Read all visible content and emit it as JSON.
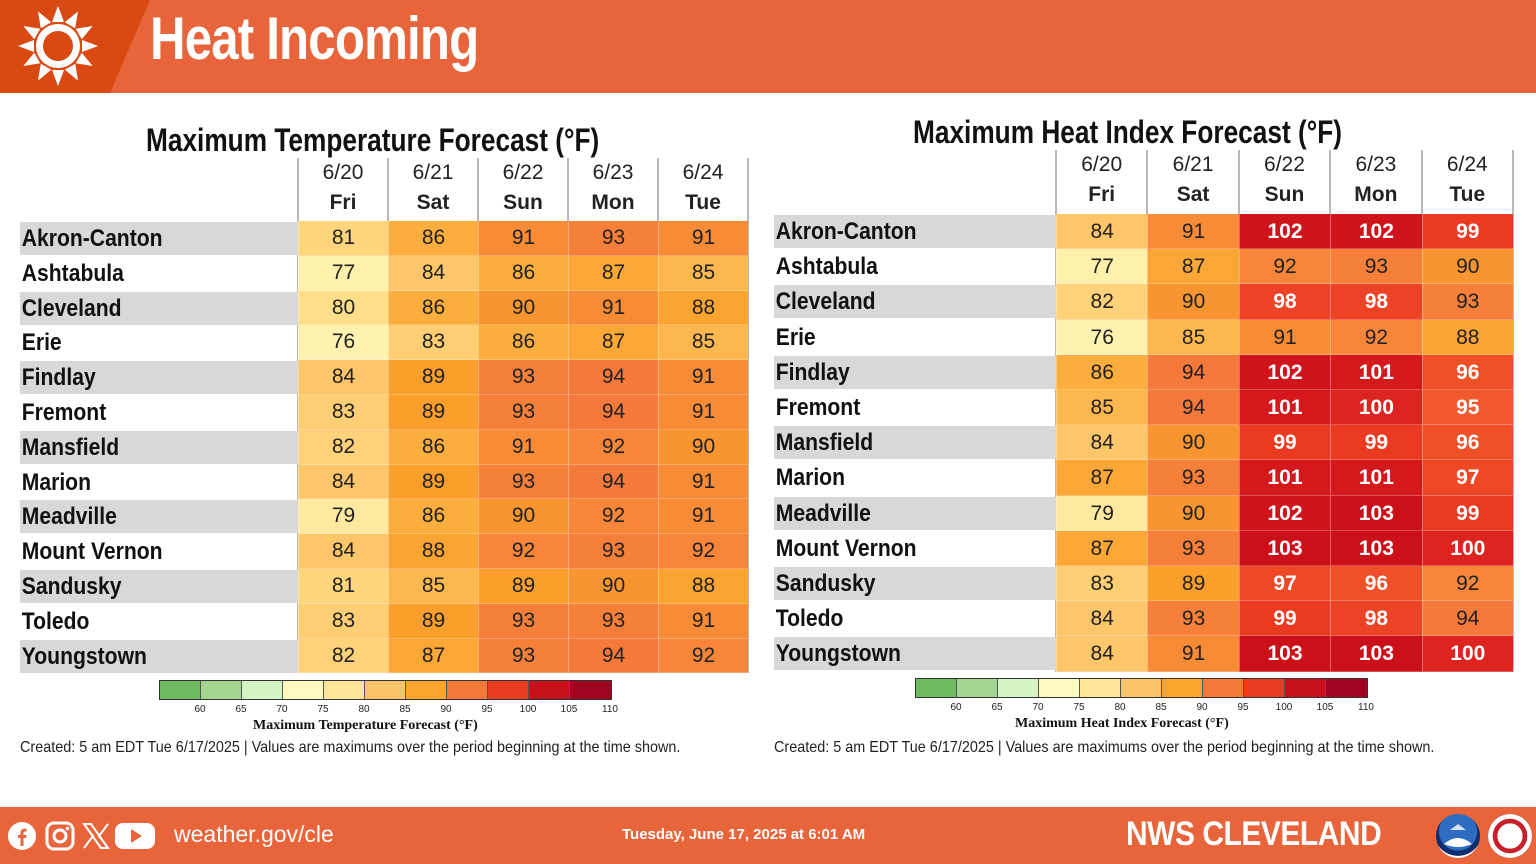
{
  "header": {
    "title": "Heat Incoming",
    "icon": "sun-icon"
  },
  "temp_panel": {
    "title": "Maximum Temperature Forecast (°F)",
    "legend_label": "Maximum Temperature Forecast (°F)",
    "days": [
      {
        "date": "6/20",
        "name": "Fri"
      },
      {
        "date": "6/21",
        "name": "Sat"
      },
      {
        "date": "6/22",
        "name": "Sun"
      },
      {
        "date": "6/23",
        "name": "Mon"
      },
      {
        "date": "6/24",
        "name": "Tue"
      }
    ],
    "rows": [
      {
        "city": "Akron-Canton",
        "values": [
          81,
          86,
          91,
          93,
          91
        ]
      },
      {
        "city": "Ashtabula",
        "values": [
          77,
          84,
          86,
          87,
          85
        ]
      },
      {
        "city": "Cleveland",
        "values": [
          80,
          86,
          90,
          91,
          88
        ]
      },
      {
        "city": "Erie",
        "values": [
          76,
          83,
          86,
          87,
          85
        ]
      },
      {
        "city": "Findlay",
        "values": [
          84,
          89,
          93,
          94,
          91
        ]
      },
      {
        "city": "Fremont",
        "values": [
          83,
          89,
          93,
          94,
          91
        ]
      },
      {
        "city": "Mansfield",
        "values": [
          82,
          86,
          91,
          92,
          90
        ]
      },
      {
        "city": "Marion",
        "values": [
          84,
          89,
          93,
          94,
          91
        ]
      },
      {
        "city": "Meadville",
        "values": [
          79,
          86,
          90,
          92,
          91
        ]
      },
      {
        "city": "Mount Vernon",
        "values": [
          84,
          88,
          92,
          93,
          92
        ]
      },
      {
        "city": "Sandusky",
        "values": [
          81,
          85,
          89,
          90,
          88
        ]
      },
      {
        "city": "Toledo",
        "values": [
          83,
          89,
          93,
          93,
          91
        ]
      },
      {
        "city": "Youngstown",
        "values": [
          82,
          87,
          93,
          94,
          92
        ]
      }
    ],
    "created": "Created: 5 am EDT Tue 6/17/2025  |  Values are maximums over the period beginning at the time shown."
  },
  "heat_panel": {
    "title": "Maximum Heat Index Forecast (°F)",
    "legend_label": "Maximum Heat Index Forecast (°F)",
    "days": [
      {
        "date": "6/20",
        "name": "Fri"
      },
      {
        "date": "6/21",
        "name": "Sat"
      },
      {
        "date": "6/22",
        "name": "Sun"
      },
      {
        "date": "6/23",
        "name": "Mon"
      },
      {
        "date": "6/24",
        "name": "Tue"
      }
    ],
    "rows": [
      {
        "city": "Akron-Canton",
        "values": [
          84,
          91,
          102,
          102,
          99
        ]
      },
      {
        "city": "Ashtabula",
        "values": [
          77,
          87,
          92,
          93,
          90
        ]
      },
      {
        "city": "Cleveland",
        "values": [
          82,
          90,
          98,
          98,
          93
        ]
      },
      {
        "city": "Erie",
        "values": [
          76,
          85,
          91,
          92,
          88
        ]
      },
      {
        "city": "Findlay",
        "values": [
          86,
          94,
          102,
          101,
          96
        ]
      },
      {
        "city": "Fremont",
        "values": [
          85,
          94,
          101,
          100,
          95
        ]
      },
      {
        "city": "Mansfield",
        "values": [
          84,
          90,
          99,
          99,
          96
        ]
      },
      {
        "city": "Marion",
        "values": [
          87,
          93,
          101,
          101,
          97
        ]
      },
      {
        "city": "Meadville",
        "values": [
          79,
          90,
          102,
          103,
          99
        ]
      },
      {
        "city": "Mount Vernon",
        "values": [
          87,
          93,
          103,
          103,
          100
        ]
      },
      {
        "city": "Sandusky",
        "values": [
          83,
          89,
          97,
          96,
          92
        ]
      },
      {
        "city": "Toledo",
        "values": [
          84,
          93,
          99,
          98,
          94
        ]
      },
      {
        "city": "Youngstown",
        "values": [
          84,
          91,
          103,
          103,
          100
        ]
      }
    ],
    "created": "Created: 5 am EDT Tue 6/17/2025  |  Values are maximums over the period beginning at the time shown."
  },
  "legend": {
    "ticks": [
      "60",
      "65",
      "70",
      "75",
      "80",
      "85",
      "90",
      "95",
      "100",
      "105",
      "110"
    ],
    "colors": [
      "#6dbb5e",
      "#a3d68e",
      "#d6f5c4",
      "#fff8c0",
      "#ffe49a",
      "#fdc36b",
      "#fba52e",
      "#f57a3a",
      "#ea3a22",
      "#c8101a",
      "#a10222"
    ]
  },
  "cell_colors": {
    "76": "#fff2b0",
    "77": "#fff0ab",
    "79": "#ffe9a0",
    "80": "#ffde8a",
    "81": "#ffd57e",
    "82": "#ffd17a",
    "83": "#fece74",
    "84": "#fdc66b",
    "85": "#fcb84f",
    "86": "#fbae3e",
    "87": "#fba738",
    "88": "#fba431",
    "89": "#fa9e2c",
    "90": "#f99530",
    "91": "#f88b35",
    "92": "#f7853a",
    "93": "#f67f3a",
    "94": "#f5793a",
    "95": "#f25a2e",
    "96": "#f05028",
    "97": "#ee4826",
    "98": "#ec4226",
    "99": "#ea3a22",
    "100": "#dc2420",
    "101": "#d4181c",
    "102": "#d0141c",
    "103": "#cc101a"
  },
  "row_shade": "#d8d8d8",
  "footer": {
    "url": "weather.gov/cle",
    "date": "Tuesday, June 17, 2025 at 6:01 AM",
    "brand": "NWS CLEVELAND",
    "social_icons": [
      "facebook-icon",
      "instagram-icon",
      "x-icon",
      "youtube-icon"
    ]
  }
}
